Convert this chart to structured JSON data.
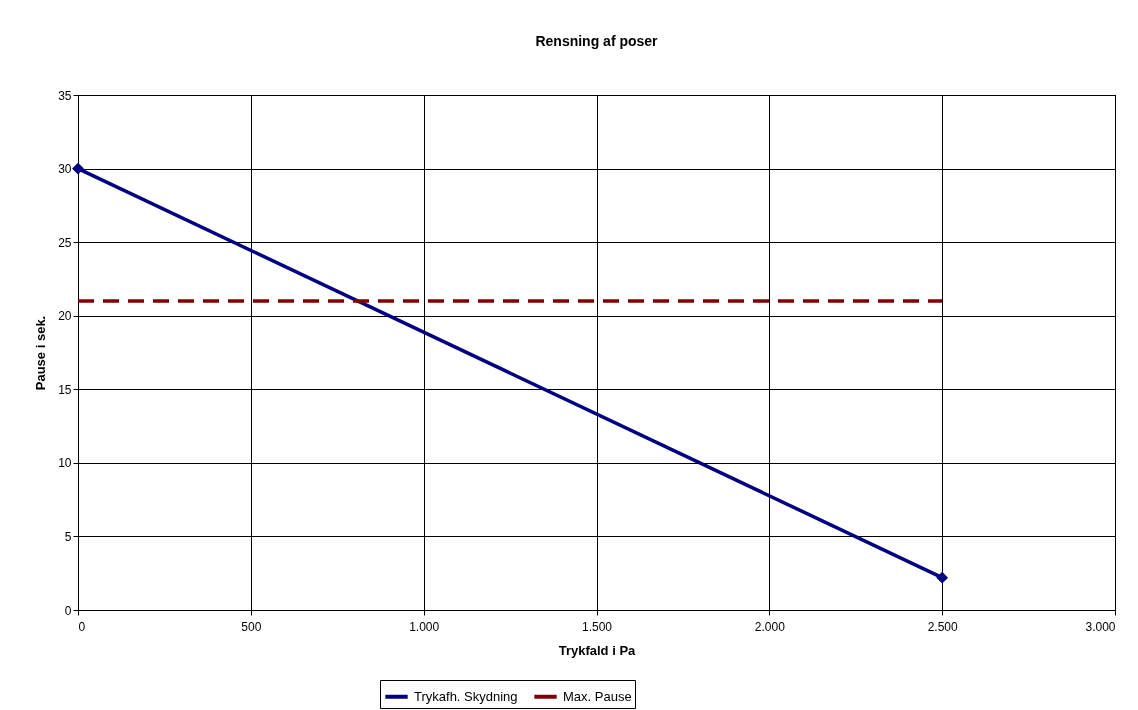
{
  "chart_data": {
    "type": "line",
    "title": "Rensning af poser",
    "xlabel": "Trykfald i Pa",
    "ylabel": "Pause i sek.",
    "xlim": [
      0,
      3000
    ],
    "xticks": [
      0,
      500,
      {
        "value": 1000,
        "label": "1.000"
      },
      {
        "value": 1500,
        "label": "1.500"
      },
      {
        "value": 2000,
        "label": "2.000"
      },
      {
        "value": 2500,
        "label": "2.500"
      },
      {
        "value": 3000,
        "label": "3.000"
      }
    ],
    "x": [
      0,
      2500
    ],
    "ylim": [
      0,
      35
    ],
    "yticks": [
      0,
      5,
      10,
      15,
      20,
      25,
      30,
      35
    ],
    "grid": true,
    "legend": "bottom",
    "series": [
      {
        "name": "Trykafh. Skydning",
        "color": "#000080",
        "values": [
          30,
          2.2
        ],
        "marker": "diamond",
        "line_style": "solid"
      },
      {
        "name": "Max. Pause",
        "color": "#800000",
        "values": [
          21,
          21
        ],
        "marker": "none",
        "line_style": "dashed"
      }
    ]
  }
}
